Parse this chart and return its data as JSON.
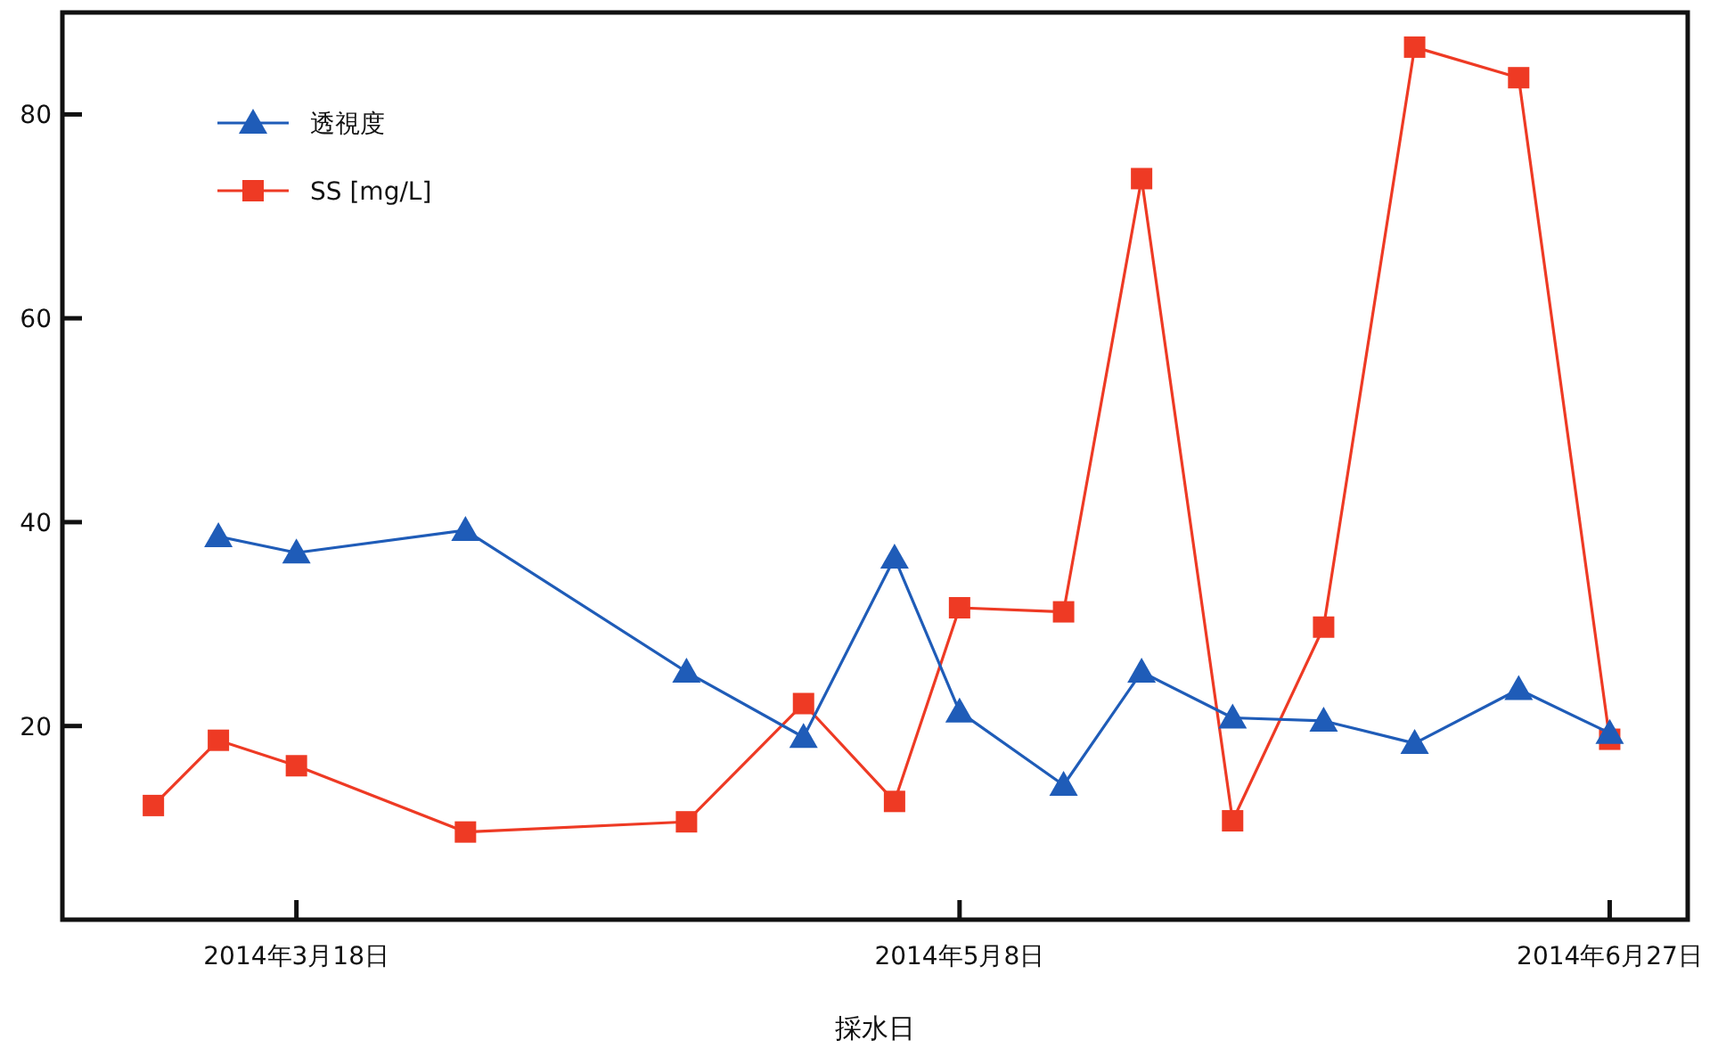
{
  "chart_data": {
    "type": "line",
    "xlabel": "採水日",
    "xlim": [
      "2014-02-28",
      "2014-07-03"
    ],
    "ylim": [
      1,
      90
    ],
    "xticks": [
      {
        "value": "2014-03-18",
        "label": "2014年3月18日"
      },
      {
        "value": "2014-05-08",
        "label": "2014年5月8日"
      },
      {
        "value": "2014-06-27",
        "label": "2014年6月27日"
      }
    ],
    "yticks": [
      20,
      40,
      60,
      80
    ],
    "grid": false,
    "legend": "top left",
    "line_style": "solid",
    "series": [
      {
        "name": "透視度",
        "color": "#1f5cb8",
        "marker": "triangle",
        "x": [
          "2014-03-12",
          "2014-03-18",
          "2014-03-31",
          "2014-04-17",
          "2014-04-26",
          "2014-05-03",
          "2014-05-08",
          "2014-05-16",
          "2014-05-22",
          "2014-05-29",
          "2014-06-05",
          "2014-06-12",
          "2014-06-20",
          "2014-06-27"
        ],
        "values": [
          38.6,
          37.0,
          39.2,
          25.3,
          18.9,
          36.5,
          21.4,
          14.2,
          25.3,
          20.8,
          20.5,
          18.3,
          23.6,
          19.3
        ]
      },
      {
        "name": "SS [mg/L]",
        "color": "#ee3a24",
        "marker": "square",
        "x": [
          "2014-03-07",
          "2014-03-12",
          "2014-03-18",
          "2014-03-31",
          "2014-04-17",
          "2014-04-26",
          "2014-05-03",
          "2014-05-08",
          "2014-05-16",
          "2014-05-22",
          "2014-05-29",
          "2014-06-05",
          "2014-06-12",
          "2014-06-20",
          "2014-06-27"
        ],
        "values": [
          12.2,
          18.6,
          16.1,
          9.6,
          10.6,
          22.2,
          12.6,
          31.6,
          31.2,
          73.7,
          10.7,
          29.7,
          86.6,
          83.6,
          18.7
        ]
      }
    ]
  }
}
